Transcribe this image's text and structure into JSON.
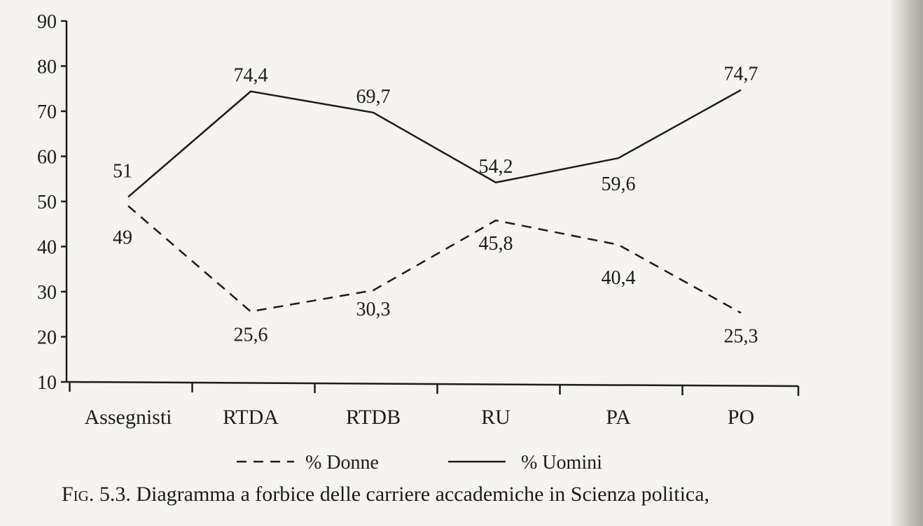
{
  "chart_data": {
    "type": "line",
    "categories": [
      "Assegnisti",
      "RTDA",
      "RTDB",
      "RU",
      "PA",
      "PO"
    ],
    "ylim": [
      10,
      90
    ],
    "yticks": [
      10,
      20,
      30,
      40,
      50,
      60,
      70,
      80,
      90
    ],
    "grid": false,
    "legend_position": "bottom",
    "series": [
      {
        "name": "% Donne",
        "values": [
          49,
          25.6,
          30.3,
          45.8,
          40.4,
          25.3
        ],
        "labels": [
          "49",
          "25,6",
          "30,3",
          "45,8",
          "40,4",
          "25,3"
        ],
        "style": "dashed"
      },
      {
        "name": "% Uomini",
        "values": [
          51,
          74.4,
          69.7,
          54.2,
          59.6,
          74.7
        ],
        "labels": [
          "51",
          "74,4",
          "69,7",
          "54,2",
          "59,6",
          "74,7"
        ],
        "style": "solid"
      }
    ]
  },
  "caption": {
    "fig_label": "Fig. 5.3.",
    "text": "Diagramma a forbice delle carriere accademiche in Scienza politica,"
  },
  "colors": {
    "ink": "#1c1c1c",
    "paper": "#f6f4f0"
  }
}
